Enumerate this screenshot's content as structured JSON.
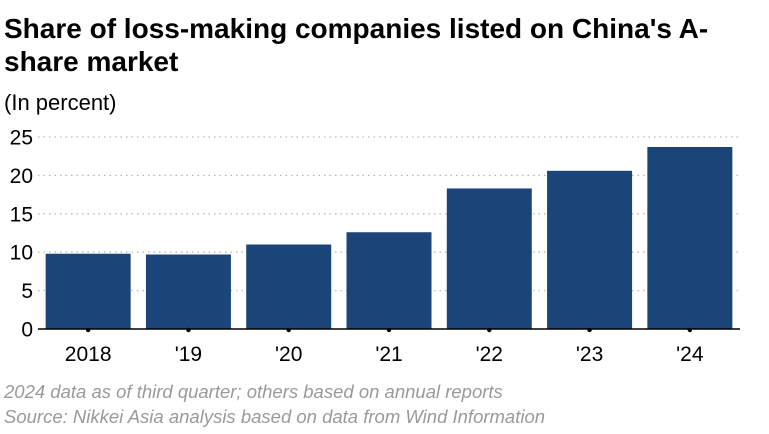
{
  "chart_data": {
    "type": "bar",
    "title": "Share of loss-making companies listed on China's A-share market",
    "subtitle": "(In percent)",
    "categories": [
      "2018",
      "'19",
      "'20",
      "'21",
      "'22",
      "'23",
      "'24"
    ],
    "values": [
      9.8,
      9.7,
      11.0,
      12.6,
      18.3,
      20.6,
      23.7
    ],
    "xlabel": "",
    "ylabel": "",
    "ylim": [
      0,
      25
    ],
    "yticks": [
      "0",
      "5",
      "10",
      "15",
      "20",
      "25"
    ],
    "grid": true,
    "legend": "none",
    "bar_color": "#1b4478",
    "grid_color": "#b9b9b9"
  },
  "notes": {
    "line1": "2024 data as of third quarter; others based on annual reports",
    "line2": "Source: Nikkei Asia analysis based on data from Wind Information"
  }
}
